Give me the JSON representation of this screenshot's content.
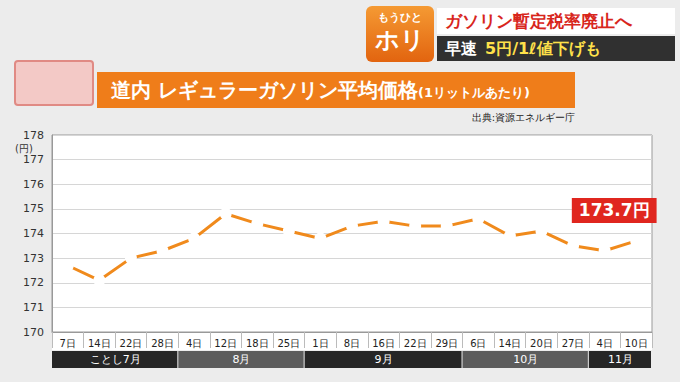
{
  "header": {
    "logo_top": "もうひと",
    "logo_bottom": "ホリ",
    "headline": "ガソリン暫定税率廃止へ",
    "subline_lead": "早速",
    "subline_highlight": "5円/1ℓ値下げも"
  },
  "chart_data": {
    "type": "line",
    "title": "道内 レギュラーガソリン平均価格",
    "subtitle": "(1リットルあたり)",
    "source": "出典:資源エネルギー庁",
    "y_label": "(円)",
    "categories": [
      "7日",
      "14日",
      "22日",
      "28日",
      "4日",
      "12日",
      "18日",
      "25日",
      "1日",
      "8日",
      "16日",
      "22日",
      "29日",
      "6日",
      "14日",
      "20日",
      "27日",
      "4日",
      "10日"
    ],
    "values": [
      172.7,
      172.1,
      173.0,
      173.3,
      173.8,
      174.8,
      174.4,
      174.1,
      173.8,
      174.3,
      174.5,
      174.3,
      174.3,
      174.6,
      173.9,
      174.1,
      173.5,
      173.3,
      173.7
    ],
    "x_groups": [
      {
        "label": "ことし7月",
        "count": 4
      },
      {
        "label": "8月",
        "count": 4
      },
      {
        "label": "9月",
        "count": 5
      },
      {
        "label": "10月",
        "count": 4
      },
      {
        "label": "11月",
        "count": 2
      }
    ],
    "annotations": [
      {
        "x": "10日",
        "text": "173.7円"
      }
    ],
    "color": "#f08a1c",
    "colors": [
      "#f08a1c",
      "#f08a1c",
      "#f08a1c",
      "#f08a1c",
      "#f08a1c",
      "#f08a1c",
      "#f08a1c",
      "#f08a1c",
      "#f08a1c",
      "#f08a1c",
      "#f08a1c",
      "#f08a1c",
      "#f08a1c",
      "#f08a1c",
      "#f08a1c",
      "#f08a1c",
      "#f08a1c",
      "#f08a1c",
      "#e0261f"
    ],
    "marker": "circle",
    "ylim": [
      170,
      178
    ],
    "yticks": [
      170,
      171,
      172,
      173,
      174,
      175,
      176,
      177,
      178
    ],
    "grid": true
  }
}
